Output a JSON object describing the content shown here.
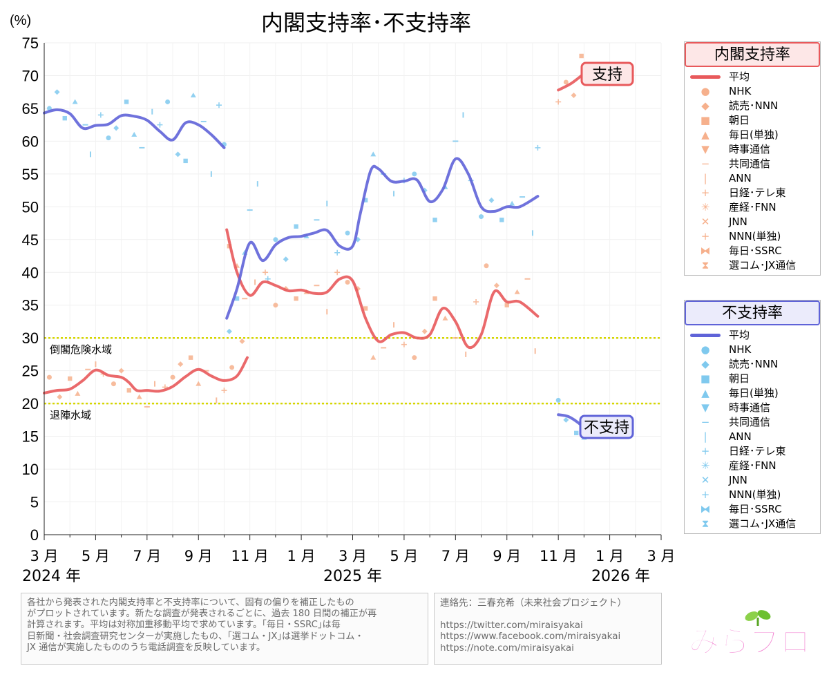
{
  "title": "内閣支持率･不支持率",
  "y_unit": "(%)",
  "y_ticks": [
    "0",
    "5",
    "10",
    "15",
    "20",
    "25",
    "30",
    "35",
    "40",
    "45",
    "50",
    "55",
    "60",
    "65",
    "70",
    "75"
  ],
  "x_month_labels": [
    "3 月",
    "5 月",
    "7 月",
    "9 月",
    "11 月",
    "1 月",
    "3 月",
    "5 月",
    "7 月",
    "9 月",
    "11 月",
    "1 月",
    "3 月"
  ],
  "x_year_labels": [
    "2024 年",
    "2025 年",
    "2026 年"
  ],
  "zones": {
    "danger_label": "倒閣危険水域",
    "danger_value": 30,
    "resign_label": "退陣水域",
    "resign_value": 20
  },
  "callouts": {
    "support": "支持",
    "nonsupport": "不支持"
  },
  "legend_support": {
    "title": "内閣支持率",
    "items": [
      "平均",
      "NHK",
      "読売･NNN",
      "朝日",
      "毎日(単独)",
      "時事通信",
      "共同通信",
      "ANN",
      "日経･テレ東",
      "産経･FNN",
      "JNN",
      "NNN(単独)",
      "毎日･SSRC",
      "選コム･JX通信"
    ]
  },
  "legend_nonsupport": {
    "title": "不支持率",
    "items": [
      "平均",
      "NHK",
      "読売･NNN",
      "朝日",
      "毎日(単独)",
      "時事通信",
      "共同通信",
      "ANN",
      "日経･テレ東",
      "産経･FNN",
      "JNN",
      "NNN(単独)",
      "毎日･SSRC",
      "選コム･JX通信"
    ]
  },
  "note": {
    "lines": [
      "各社から発表された内閣支持率と不支持率について、固有の偏りを補正したもの",
      "がプロットされています。新たな調査が発表されるごとに、過去 180 日間の補正が再",
      "計算されます。平均は対称加重移動平均で求めています。｢毎日・SSRC｣は毎",
      "日新聞・社会調査研究センターが実施したもの、｢選コム・JX｣は選挙ドットコム・",
      "JX 通信が実施したもののうち電話調査を反映しています。"
    ]
  },
  "contact": {
    "line": "連絡先：三春充希（未来社会プロジェクト）",
    "links": [
      "https://twitter.com/miraisyakai",
      "https://www.facebook.com/miraisyakai",
      "https://note.com/miraisyakai"
    ]
  },
  "logo_text": "みらプロ",
  "colors": {
    "support": "#e8595b",
    "nonsupport": "#5f63d8",
    "support_pts": "#f6b08c",
    "nonsupport_pts": "#7fc9ee",
    "zone_line": "#d6d600",
    "support_title_bg": "#fde7e7",
    "nonsupport_title_bg": "#ebebfb"
  },
  "chart_data": {
    "type": "line",
    "title": "内閣支持率･不支持率",
    "ylabel": "(%)",
    "ylim": [
      0,
      75
    ],
    "x_unit": "months since 2024-03",
    "xlim": [
      0,
      24
    ],
    "series": [
      {
        "name": "支持 平均",
        "segments": [
          [
            [
              0,
              21.6
            ],
            [
              0.5,
              22.0
            ],
            [
              1.0,
              22.2
            ],
            [
              1.5,
              23.5
            ],
            [
              2.0,
              25.1
            ],
            [
              2.5,
              24.3
            ],
            [
              3.0,
              24.0
            ],
            [
              3.3,
              23.2
            ],
            [
              3.6,
              22.0
            ],
            [
              4.0,
              22.0
            ],
            [
              4.5,
              21.9
            ],
            [
              5.0,
              22.6
            ],
            [
              5.5,
              24.1
            ],
            [
              6.0,
              25.2
            ],
            [
              6.5,
              24.2
            ],
            [
              7.0,
              23.5
            ],
            [
              7.5,
              24.2
            ],
            [
              7.9,
              27.0
            ]
          ],
          [
            [
              7.1,
              46.5
            ],
            [
              7.5,
              40.0
            ],
            [
              8.0,
              36.5
            ],
            [
              8.5,
              38.5
            ],
            [
              9.0,
              38.0
            ],
            [
              9.5,
              37.2
            ],
            [
              10.0,
              37.3
            ],
            [
              10.5,
              36.8
            ],
            [
              11.0,
              37.0
            ],
            [
              11.5,
              39.0
            ],
            [
              12.0,
              38.7
            ],
            [
              12.5,
              33.0
            ],
            [
              13.0,
              29.5
            ],
            [
              13.5,
              30.5
            ],
            [
              14.0,
              30.8
            ],
            [
              14.5,
              30.0
            ],
            [
              15.0,
              30.5
            ],
            [
              15.5,
              34.5
            ],
            [
              16.0,
              32.5
            ],
            [
              16.5,
              28.6
            ],
            [
              17.0,
              30.5
            ],
            [
              17.5,
              37.0
            ],
            [
              18.0,
              35.5
            ],
            [
              18.5,
              35.5
            ],
            [
              19.2,
              33.3
            ]
          ],
          [
            [
              20.0,
              67.8
            ],
            [
              20.5,
              68.8
            ],
            [
              21.0,
              70.3
            ]
          ]
        ]
      },
      {
        "name": "不支持 平均",
        "segments": [
          [
            [
              0,
              64.3
            ],
            [
              0.5,
              64.8
            ],
            [
              1.0,
              64.2
            ],
            [
              1.5,
              62.0
            ],
            [
              2.0,
              62.4
            ],
            [
              2.5,
              62.6
            ],
            [
              3.0,
              63.9
            ],
            [
              3.5,
              63.8
            ],
            [
              4.0,
              63.2
            ],
            [
              4.5,
              61.5
            ],
            [
              5.0,
              60.2
            ],
            [
              5.5,
              62.8
            ],
            [
              6.0,
              62.5
            ],
            [
              6.5,
              61.0
            ],
            [
              7.0,
              59.0
            ]
          ],
          [
            [
              7.1,
              33.0
            ],
            [
              7.5,
              37.5
            ],
            [
              8.0,
              44.5
            ],
            [
              8.5,
              41.8
            ],
            [
              9.0,
              44.2
            ],
            [
              9.5,
              45.3
            ],
            [
              10.0,
              45.5
            ],
            [
              10.5,
              46.0
            ],
            [
              11.0,
              46.4
            ],
            [
              11.5,
              44.0
            ],
            [
              12.0,
              44.0
            ],
            [
              12.3,
              49.0
            ],
            [
              12.7,
              55.5
            ],
            [
              13.0,
              55.8
            ],
            [
              13.5,
              53.9
            ],
            [
              14.0,
              53.9
            ],
            [
              14.5,
              54.1
            ],
            [
              15.0,
              50.8
            ],
            [
              15.5,
              52.6
            ],
            [
              16.0,
              57.3
            ],
            [
              16.5,
              55.0
            ],
            [
              17.0,
              50.0
            ],
            [
              17.5,
              49.3
            ],
            [
              18.0,
              50.0
            ],
            [
              18.5,
              50.0
            ],
            [
              19.2,
              51.6
            ]
          ],
          [
            [
              20.0,
              18.3
            ],
            [
              20.4,
              18.0
            ],
            [
              20.8,
              17.0
            ],
            [
              21.0,
              16.2
            ]
          ]
        ]
      }
    ],
    "support_points": [
      [
        0.2,
        24.0
      ],
      [
        0.6,
        21.0
      ],
      [
        1.0,
        23.8
      ],
      [
        1.3,
        21.5
      ],
      [
        1.7,
        25.2
      ],
      [
        2.0,
        26.0
      ],
      [
        2.3,
        24.5
      ],
      [
        2.7,
        23.0
      ],
      [
        3.0,
        25.0
      ],
      [
        3.3,
        22.0
      ],
      [
        3.7,
        21.0
      ],
      [
        4.0,
        19.5
      ],
      [
        4.3,
        23.0
      ],
      [
        4.7,
        22.5
      ],
      [
        5.0,
        24.0
      ],
      [
        5.3,
        26.0
      ],
      [
        5.7,
        27.0
      ],
      [
        6.0,
        23.0
      ],
      [
        6.3,
        25.0
      ],
      [
        6.7,
        20.5
      ],
      [
        7.0,
        22.0
      ],
      [
        7.3,
        25.5
      ],
      [
        7.7,
        29.5
      ],
      [
        7.2,
        44.0
      ],
      [
        7.5,
        41.0
      ],
      [
        7.8,
        36.0
      ],
      [
        8.2,
        38.5
      ],
      [
        8.6,
        40.0
      ],
      [
        9.0,
        35.0
      ],
      [
        9.4,
        37.5
      ],
      [
        9.8,
        36.0
      ],
      [
        10.2,
        37.0
      ],
      [
        10.6,
        38.0
      ],
      [
        11.0,
        34.0
      ],
      [
        11.4,
        40.0
      ],
      [
        11.8,
        38.5
      ],
      [
        12.2,
        37.5
      ],
      [
        12.5,
        34.5
      ],
      [
        12.8,
        27.0
      ],
      [
        13.2,
        28.5
      ],
      [
        13.6,
        32.0
      ],
      [
        14.0,
        29.0
      ],
      [
        14.4,
        27.0
      ],
      [
        14.8,
        31.0
      ],
      [
        15.2,
        36.0
      ],
      [
        15.6,
        33.0
      ],
      [
        16.0,
        30.0
      ],
      [
        16.4,
        27.5
      ],
      [
        16.8,
        35.5
      ],
      [
        17.2,
        41.0
      ],
      [
        17.6,
        38.0
      ],
      [
        18.0,
        35.0
      ],
      [
        18.4,
        37.0
      ],
      [
        18.8,
        39.0
      ],
      [
        19.1,
        28.0
      ],
      [
        20.0,
        66.0
      ],
      [
        20.3,
        69.0
      ],
      [
        20.6,
        67.0
      ],
      [
        20.9,
        73.0
      ],
      [
        21.0,
        70.0
      ]
    ],
    "nonsupport_points": [
      [
        0.2,
        65.0
      ],
      [
        0.5,
        67.5
      ],
      [
        0.8,
        63.5
      ],
      [
        1.2,
        66.0
      ],
      [
        1.6,
        62.5
      ],
      [
        1.8,
        58.0
      ],
      [
        2.2,
        64.0
      ],
      [
        2.5,
        60.5
      ],
      [
        2.8,
        62.0
      ],
      [
        3.2,
        66.0
      ],
      [
        3.5,
        61.0
      ],
      [
        3.8,
        59.0
      ],
      [
        4.2,
        64.5
      ],
      [
        4.5,
        62.5
      ],
      [
        4.8,
        66.0
      ],
      [
        5.2,
        58.0
      ],
      [
        5.5,
        57.0
      ],
      [
        5.8,
        67.0
      ],
      [
        6.2,
        63.0
      ],
      [
        6.5,
        55.0
      ],
      [
        6.8,
        65.5
      ],
      [
        7.0,
        59.5
      ],
      [
        7.2,
        31.0
      ],
      [
        7.5,
        36.0
      ],
      [
        7.8,
        43.0
      ],
      [
        8.0,
        49.5
      ],
      [
        8.3,
        53.5
      ],
      [
        8.7,
        39.0
      ],
      [
        9.0,
        45.0
      ],
      [
        9.4,
        42.0
      ],
      [
        9.8,
        47.0
      ],
      [
        10.2,
        45.5
      ],
      [
        10.6,
        48.0
      ],
      [
        11.0,
        50.5
      ],
      [
        11.4,
        43.0
      ],
      [
        11.8,
        46.0
      ],
      [
        12.2,
        45.0
      ],
      [
        12.5,
        51.0
      ],
      [
        12.8,
        58.0
      ],
      [
        13.2,
        55.0
      ],
      [
        13.6,
        52.0
      ],
      [
        14.0,
        54.0
      ],
      [
        14.4,
        55.0
      ],
      [
        14.8,
        52.5
      ],
      [
        15.2,
        48.0
      ],
      [
        15.6,
        53.0
      ],
      [
        16.0,
        60.0
      ],
      [
        16.3,
        64.0
      ],
      [
        16.6,
        54.0
      ],
      [
        17.0,
        48.5
      ],
      [
        17.4,
        51.0
      ],
      [
        17.8,
        48.0
      ],
      [
        18.2,
        50.5
      ],
      [
        18.6,
        51.5
      ],
      [
        19.0,
        46.0
      ],
      [
        19.2,
        59.0
      ],
      [
        20.0,
        20.5
      ],
      [
        20.3,
        17.5
      ],
      [
        20.7,
        15.5
      ],
      [
        21.0,
        14.8
      ]
    ]
  }
}
